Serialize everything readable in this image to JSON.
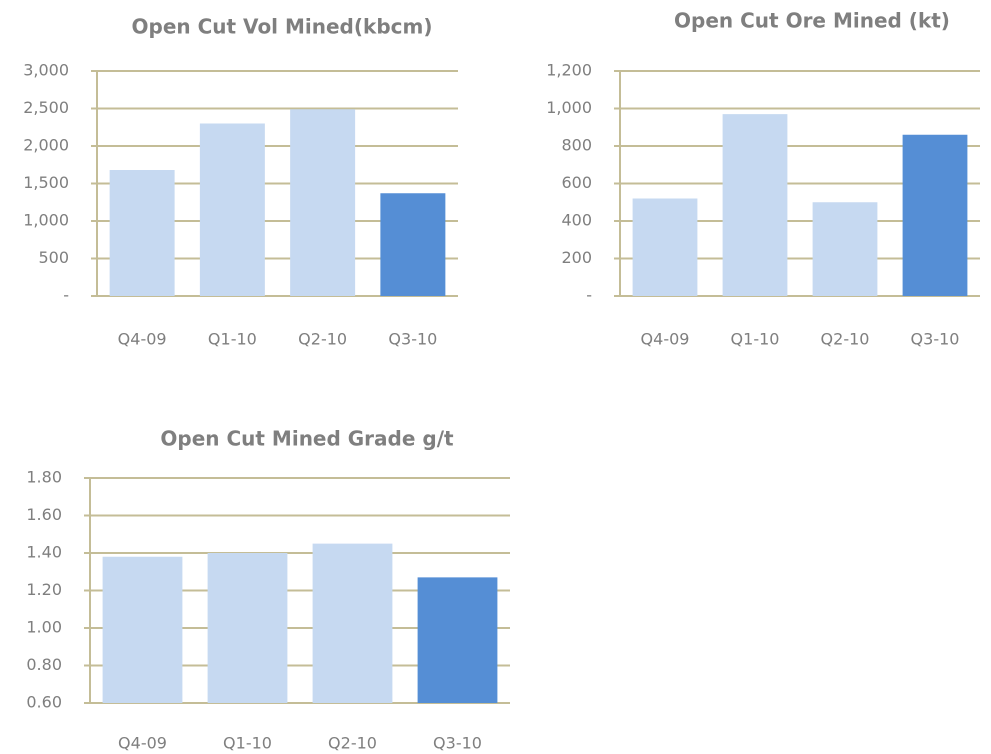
{
  "chart_data": [
    {
      "type": "bar",
      "title": "Open Cut Vol Mined(kbcm)",
      "categories": [
        "Q4-09",
        "Q1-10",
        "Q2-10",
        "Q3-10"
      ],
      "values": [
        1680,
        2300,
        2490,
        1370
      ],
      "colors": [
        "#c6d9f1",
        "#c6d9f1",
        "#c6d9f1",
        "#558ed5"
      ],
      "ylim": [
        0,
        3000
      ],
      "yticks": [
        {
          "value": 0,
          "label": "-"
        },
        500,
        {
          "value": 1000,
          "label": "1,000"
        },
        {
          "value": 1500,
          "label": "1,500"
        },
        {
          "value": 2000,
          "label": "2,000"
        },
        {
          "value": 2500,
          "label": "2,500"
        },
        {
          "value": 3000,
          "label": "3,000"
        }
      ],
      "grid": true
    },
    {
      "type": "bar",
      "title": "Open Cut Ore Mined (kt)",
      "categories": [
        "Q4-09",
        "Q1-10",
        "Q2-10",
        "Q3-10"
      ],
      "values": [
        520,
        970,
        500,
        860
      ],
      "colors": [
        "#c6d9f1",
        "#c6d9f1",
        "#c6d9f1",
        "#558ed5"
      ],
      "ylim": [
        0,
        1200
      ],
      "yticks": [
        {
          "value": 0,
          "label": "-"
        },
        200,
        400,
        600,
        800,
        {
          "value": 1000,
          "label": "1,000"
        },
        {
          "value": 1200,
          "label": "1,200"
        }
      ],
      "grid": true
    },
    {
      "type": "bar",
      "title": "Open Cut Mined Grade g/t",
      "categories": [
        "Q4-09",
        "Q1-10",
        "Q2-10",
        "Q3-10"
      ],
      "values": [
        1.38,
        1.4,
        1.45,
        1.27
      ],
      "colors": [
        "#c6d9f1",
        "#c6d9f1",
        "#c6d9f1",
        "#558ed5"
      ],
      "ylim": [
        0.6,
        1.8
      ],
      "yticks": [
        {
          "value": 0.6,
          "label": "0.60"
        },
        {
          "value": 0.8,
          "label": "0.80"
        },
        {
          "value": 1.0,
          "label": "1.00"
        },
        {
          "value": 1.2,
          "label": "1.20"
        },
        {
          "value": 1.4,
          "label": "1.40"
        },
        {
          "value": 1.6,
          "label": "1.60"
        },
        {
          "value": 1.8,
          "label": "1.80"
        }
      ],
      "grid": true
    }
  ]
}
